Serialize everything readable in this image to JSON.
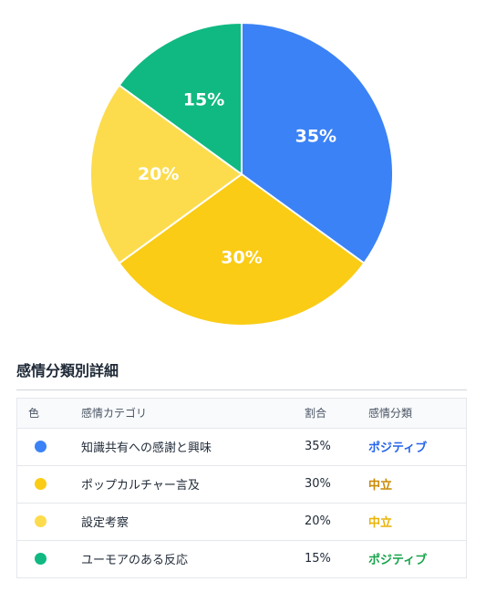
{
  "chart_data": {
    "type": "pie",
    "title": "",
    "slices": [
      {
        "label": "知識共有への感謝と興味",
        "value": 35,
        "color": "#3b82f6"
      },
      {
        "label": "ポップカルチャー言及",
        "value": 30,
        "color": "#facc15"
      },
      {
        "label": "設定考察",
        "value": 20,
        "color": "#fcdc4d"
      },
      {
        "label": "ユーモアのある反応",
        "value": 15,
        "color": "#10b981"
      }
    ],
    "value_format": "{v}%"
  },
  "table": {
    "title": "感情分類別詳細",
    "headers": {
      "color": "色",
      "category": "感情カテゴリ",
      "ratio": "割合",
      "sentiment": "感情分類"
    },
    "rows": [
      {
        "dot_color": "#3b82f6",
        "category": "知識共有への感謝と興味",
        "ratio": "35%",
        "sentiment": "ポジティブ",
        "sentiment_color": "#2563eb"
      },
      {
        "dot_color": "#facc15",
        "category": "ポップカルチャー言及",
        "ratio": "30%",
        "sentiment": "中立",
        "sentiment_color": "#ca8a04"
      },
      {
        "dot_color": "#fcdc4d",
        "category": "設定考察",
        "ratio": "20%",
        "sentiment": "中立",
        "sentiment_color": "#eab308"
      },
      {
        "dot_color": "#10b981",
        "category": "ユーモアのある反応",
        "ratio": "15%",
        "sentiment": "ポジティブ",
        "sentiment_color": "#16a34a"
      }
    ]
  }
}
